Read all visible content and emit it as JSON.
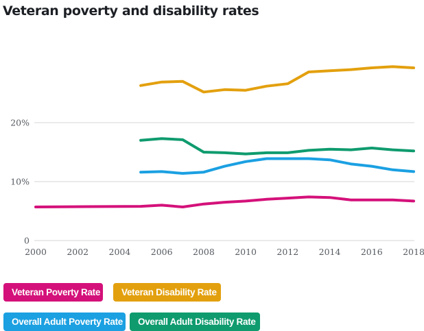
{
  "chart_data": {
    "type": "line",
    "title": "Veteran poverty and disability rates",
    "xlabel": "",
    "ylabel": "",
    "x_ticks": [
      "2000",
      "2002",
      "2004",
      "2006",
      "2008",
      "2010",
      "2012",
      "2014",
      "2016",
      "2018"
    ],
    "y_ticks": [
      "0",
      "10%",
      "20%"
    ],
    "xlim": [
      2000,
      2018
    ],
    "ylim": [
      0,
      30
    ],
    "grid": "horizontal",
    "legend_position": "bottom",
    "series": [
      {
        "name": "Veteran Poverty Rate",
        "color": "#d4117a",
        "x": [
          2000,
          2005,
          2006,
          2007,
          2008,
          2009,
          2010,
          2011,
          2012,
          2013,
          2014,
          2015,
          2016,
          2017,
          2018
        ],
        "values": [
          5.7,
          5.8,
          6.0,
          5.7,
          6.2,
          6.5,
          6.7,
          7.0,
          7.2,
          7.4,
          7.3,
          6.9,
          6.9,
          6.9,
          6.7
        ]
      },
      {
        "name": "Veteran Disability Rate",
        "color": "#e3a00e",
        "x": [
          2005,
          2006,
          2007,
          2008,
          2009,
          2010,
          2011,
          2012,
          2013,
          2014,
          2015,
          2016,
          2017,
          2018
        ],
        "values": [
          26.3,
          26.9,
          27.0,
          25.2,
          25.6,
          25.5,
          26.2,
          26.6,
          28.6,
          28.8,
          29.0,
          29.3,
          29.5,
          29.3
        ]
      },
      {
        "name": "Overall Adult Poverty Rate",
        "color": "#1ba0e2",
        "x": [
          2005,
          2006,
          2007,
          2008,
          2009,
          2010,
          2011,
          2012,
          2013,
          2014,
          2015,
          2016,
          2017,
          2018
        ],
        "values": [
          11.6,
          11.7,
          11.4,
          11.6,
          12.6,
          13.4,
          13.9,
          13.9,
          13.9,
          13.7,
          13.0,
          12.6,
          12.0,
          11.7
        ]
      },
      {
        "name": "Overall Adult Disability Rate",
        "color": "#0f9b6e",
        "x": [
          2005,
          2006,
          2007,
          2008,
          2009,
          2010,
          2011,
          2012,
          2013,
          2014,
          2015,
          2016,
          2017,
          2018
        ],
        "values": [
          17.0,
          17.3,
          17.1,
          15.0,
          14.9,
          14.7,
          14.9,
          14.9,
          15.3,
          15.5,
          15.4,
          15.7,
          15.4,
          15.2
        ]
      }
    ]
  },
  "legend": [
    {
      "label": "Veteran Poverty Rate",
      "color": "#d4117a"
    },
    {
      "label": "Veteran Disability Rate",
      "color": "#e3a00e"
    },
    {
      "label": "Overall Adult Poverty Rate",
      "color": "#1ba0e2"
    },
    {
      "label": "Overall Adult Disability Rate",
      "color": "#0f9b6e"
    }
  ],
  "colors": {
    "gridline": "#dedede",
    "tick_text": "#555a60",
    "title_text": "#1c1f24"
  }
}
